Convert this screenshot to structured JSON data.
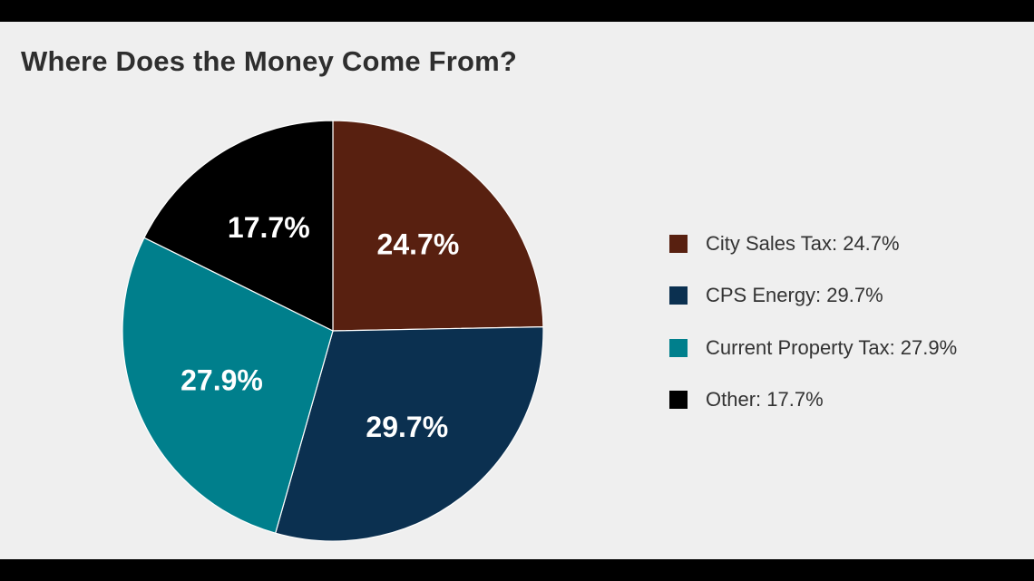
{
  "chart_data": {
    "type": "pie",
    "title": "Where Does the Money Come From?",
    "slices": [
      {
        "label": "City Sales Tax",
        "value": 24.7,
        "display": "24.7%",
        "legend": "City Sales Tax: 24.7%",
        "color": "#582010"
      },
      {
        "label": "CPS Energy",
        "value": 29.7,
        "display": "29.7%",
        "legend": "CPS Energy: 29.7%",
        "color": "#0b3050"
      },
      {
        "label": "Current Property Tax",
        "value": 27.9,
        "display": "27.9%",
        "legend": "Current Property Tax: 27.9%",
        "color": "#007f8c"
      },
      {
        "label": "Other",
        "value": 17.7,
        "display": "17.7%",
        "legend": "Other: 17.7%",
        "color": "#000000"
      }
    ],
    "start": "12 o'clock",
    "direction": "clockwise",
    "legend_position": "right"
  }
}
